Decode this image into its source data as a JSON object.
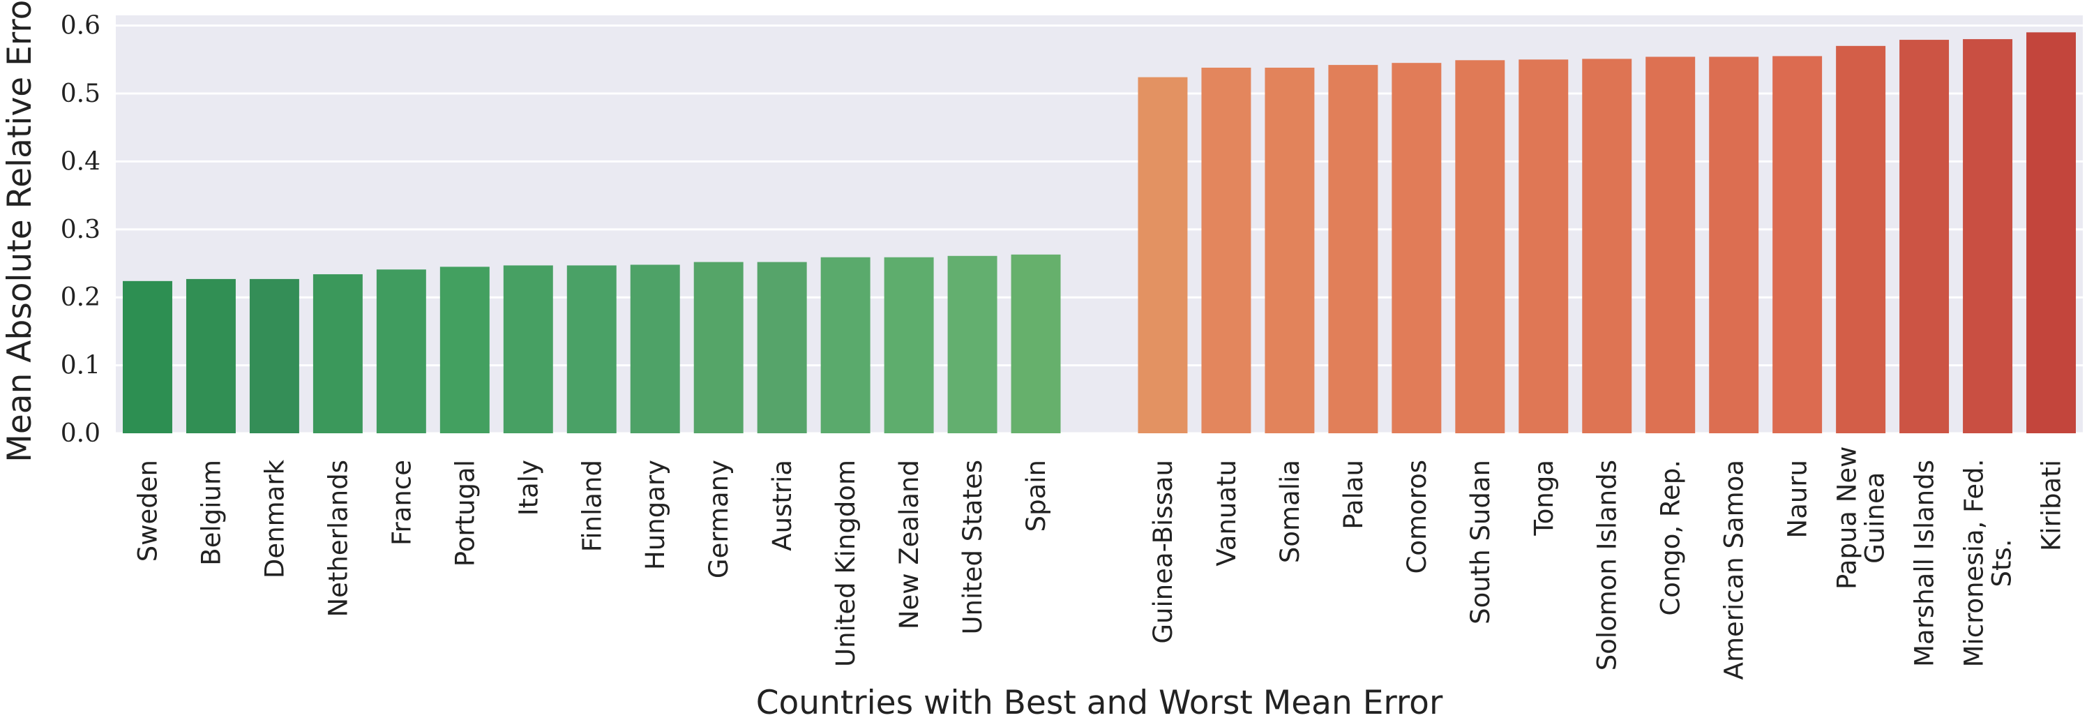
{
  "chart_data": {
    "type": "bar",
    "xlabel": "Countries with Best and Worst Mean Error",
    "ylabel": "Mean Absolute Relative Error",
    "ylim": [
      0,
      0.615
    ],
    "yticks": [
      "0.0",
      "0.1",
      "0.2",
      "0.3",
      "0.4",
      "0.5",
      "0.6"
    ],
    "grid": true,
    "background": "#eaeaf2",
    "groups": [
      {
        "categories": [
          "Sweden",
          "Belgium",
          "Denmark",
          "Netherlands",
          "France",
          "Portugal",
          "Italy",
          "Finland",
          "Hungary",
          "Germany",
          "Austria",
          "United Kingdom",
          "New Zealand",
          "United States",
          "Spain"
        ],
        "values": [
          0.224,
          0.227,
          0.227,
          0.234,
          0.241,
          0.245,
          0.247,
          0.247,
          0.248,
          0.252,
          0.252,
          0.259,
          0.259,
          0.261,
          0.263
        ],
        "colors": [
          "#2d8f52",
          "#318f54",
          "#348e57",
          "#3b985b",
          "#409c5f",
          "#43a060",
          "#47a063",
          "#4aa166",
          "#4ea267",
          "#55a568",
          "#56a46a",
          "#5aaa6c",
          "#5ead6d",
          "#63af6f",
          "#66b06c"
        ]
      },
      {
        "categories": [
          "Guinea-Bissau",
          "Vanuatu",
          "Somalia",
          "Palau",
          "Comoros",
          "South Sudan",
          "Tonga",
          "Solomon Islands",
          "Congo, Rep.",
          "American Samoa",
          "Nauru",
          "Papua New Guinea",
          "Marshall Islands",
          "Micronesia, Fed. Sts.",
          "Kiribati"
        ],
        "values": [
          0.524,
          0.538,
          0.538,
          0.542,
          0.545,
          0.549,
          0.55,
          0.551,
          0.554,
          0.554,
          0.555,
          0.57,
          0.579,
          0.58,
          0.59
        ],
        "colors": [
          "#e39262",
          "#e3865d",
          "#e2835b",
          "#e17f59",
          "#e17c58",
          "#e07a56",
          "#df7755",
          "#de7453",
          "#dd7152",
          "#dc6e51",
          "#dc6b50",
          "#d35e48",
          "#cc5444",
          "#c94f42",
          "#c3453c"
        ]
      }
    ]
  }
}
